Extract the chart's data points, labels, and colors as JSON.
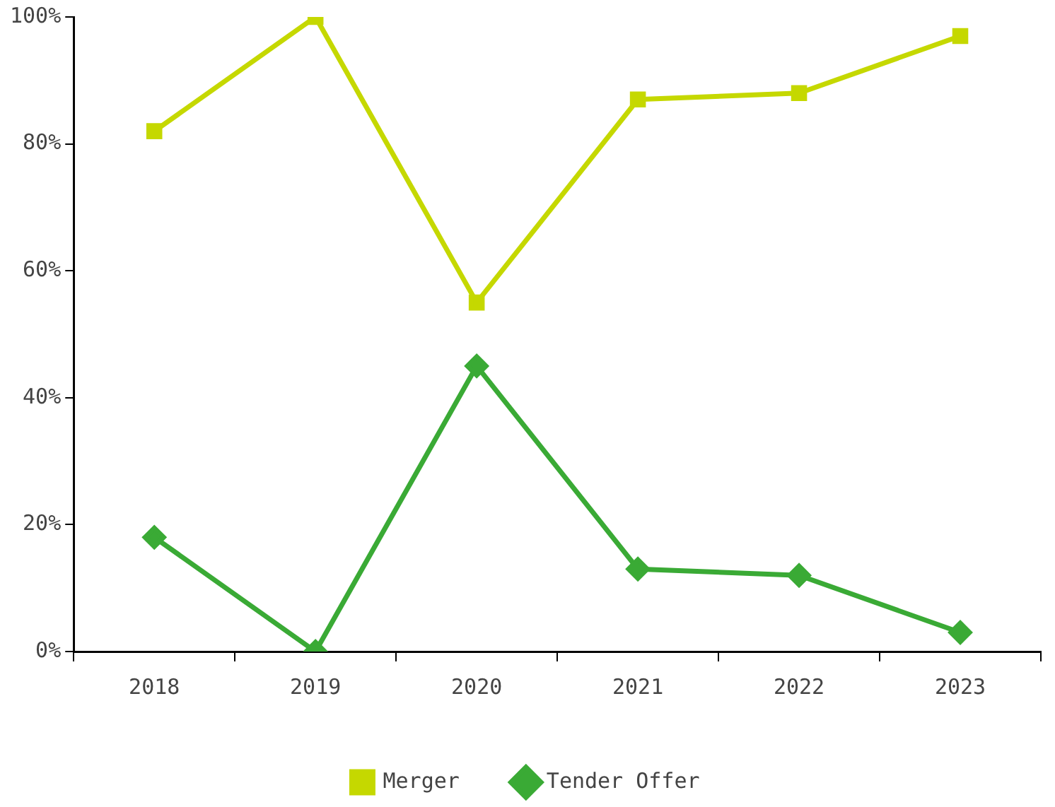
{
  "chart_data": {
    "type": "line",
    "categories": [
      "2018",
      "2019",
      "2020",
      "2021",
      "2022",
      "2023"
    ],
    "series": [
      {
        "name": "Merger",
        "color": "#c5d800",
        "marker": "square",
        "values": [
          82,
          100,
          55,
          87,
          88,
          97
        ]
      },
      {
        "name": "Tender Offer",
        "color": "#3aaa35",
        "marker": "diamond",
        "values": [
          18,
          0,
          45,
          13,
          12,
          3
        ]
      }
    ],
    "ylim": [
      0,
      100
    ],
    "yticks": [
      {
        "value": 0,
        "label": "0%"
      },
      {
        "value": 20,
        "label": "20%"
      },
      {
        "value": 40,
        "label": "40%"
      },
      {
        "value": 60,
        "label": "60%"
      },
      {
        "value": 80,
        "label": "80%"
      },
      {
        "value": 100,
        "label": "100%"
      }
    ],
    "grid": false,
    "legend": "bottom",
    "line_style": "solid"
  }
}
